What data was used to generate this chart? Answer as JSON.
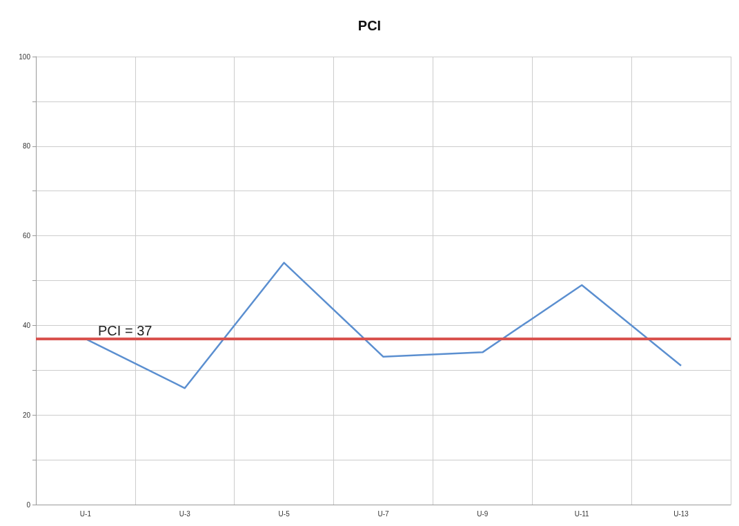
{
  "chart_data": {
    "type": "line",
    "title": "PCI",
    "categories": [
      "U-1",
      "U-3",
      "U-5",
      "U-7",
      "U-9",
      "U-11",
      "U-13"
    ],
    "series": [
      {
        "color": "#5b8fd0",
        "values": [
          37,
          26,
          54,
          33,
          34,
          49,
          31
        ]
      }
    ],
    "ylim": [
      0,
      100
    ],
    "yticks": [
      0,
      {
        "value": 10,
        "label": null
      },
      20,
      {
        "value": 30,
        "label": null
      },
      40,
      {
        "value": 50,
        "label": null
      },
      60,
      {
        "value": 70,
        "label": null
      },
      80,
      {
        "value": 90,
        "label": null
      },
      100
    ],
    "ref_lines": [
      {
        "axis": "y",
        "value": 37,
        "label": "PCI = 37",
        "color": "#d9534f"
      }
    ],
    "grid": true,
    "marker": "none",
    "line_style": "solid"
  }
}
